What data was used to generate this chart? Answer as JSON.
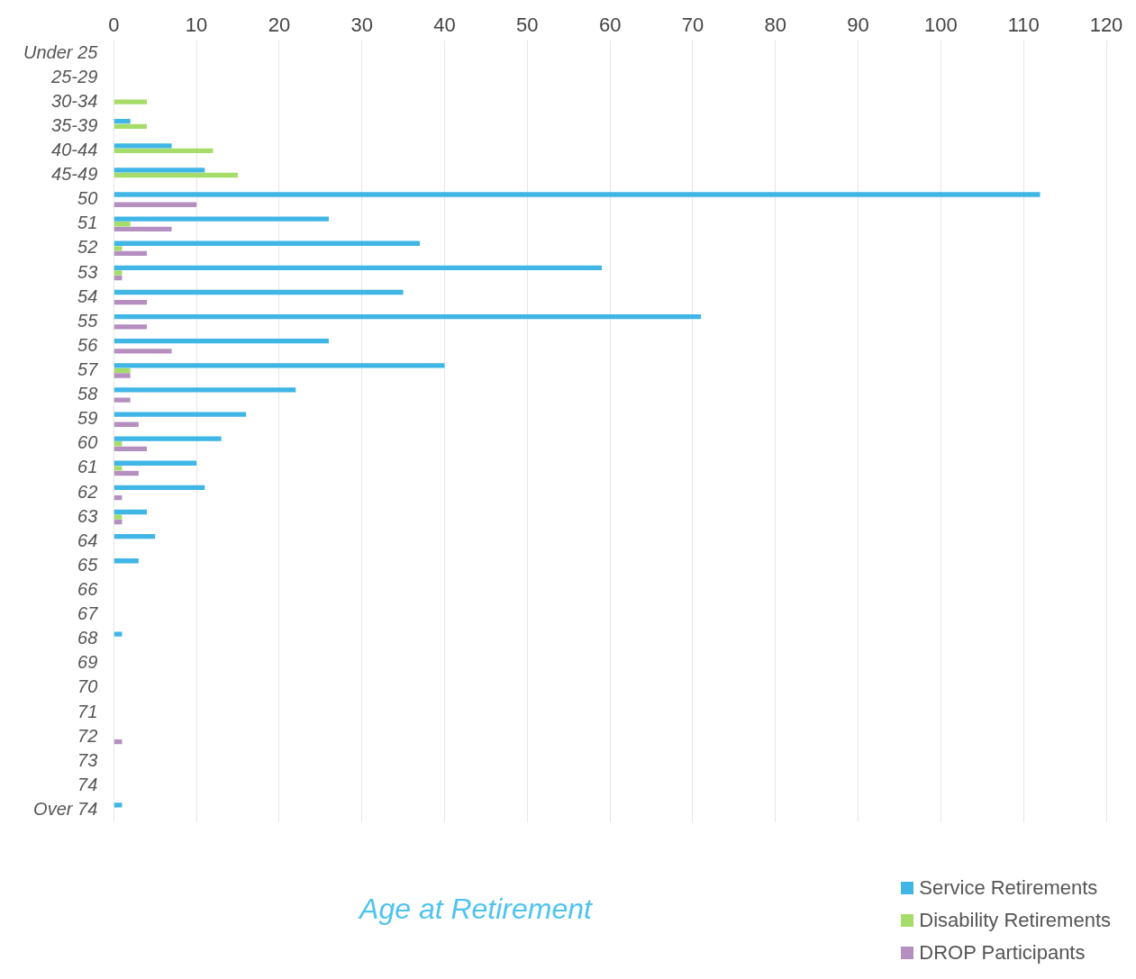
{
  "chart_data": {
    "type": "bar",
    "orientation": "horizontal",
    "title": "Age at Retirement",
    "categories": [
      "Under 25",
      "25-29",
      "30-34",
      "35-39",
      "40-44",
      "45-49",
      "50",
      "51",
      "52",
      "53",
      "54",
      "55",
      "56",
      "57",
      "58",
      "59",
      "60",
      "61",
      "62",
      "63",
      "64",
      "65",
      "66",
      "67",
      "68",
      "69",
      "70",
      "71",
      "72",
      "73",
      "74",
      "Over 74"
    ],
    "series": [
      {
        "name": "Service Retirements",
        "color": "#3fb6e6",
        "values": [
          0,
          0,
          0,
          2,
          7,
          11,
          112,
          26,
          37,
          59,
          35,
          71,
          26,
          40,
          22,
          16,
          13,
          10,
          11,
          4,
          5,
          3,
          0,
          0,
          1,
          0,
          0,
          0,
          0,
          0,
          0,
          1
        ]
      },
      {
        "name": "Disability Retirements",
        "color": "#a6dd6a",
        "values": [
          0,
          0,
          4,
          4,
          12,
          15,
          0,
          2,
          1,
          1,
          0,
          0,
          0,
          2,
          0,
          0,
          1,
          1,
          0,
          1,
          0,
          0,
          0,
          0,
          0,
          0,
          0,
          0,
          0,
          0,
          0,
          0
        ]
      },
      {
        "name": "DROP Participants",
        "color": "#b48fc0",
        "values": [
          0,
          0,
          0,
          0,
          0,
          0,
          10,
          7,
          4,
          1,
          4,
          4,
          7,
          2,
          2,
          3,
          4,
          3,
          1,
          1,
          0,
          0,
          0,
          0,
          0,
          0,
          0,
          0,
          1,
          0,
          0,
          0
        ]
      }
    ],
    "xlim": [
      0,
      120
    ],
    "xticks": [
      0,
      10,
      20,
      30,
      40,
      50,
      60,
      70,
      80,
      90,
      100,
      110,
      120
    ],
    "grid": "x",
    "legend": "bottom right"
  }
}
